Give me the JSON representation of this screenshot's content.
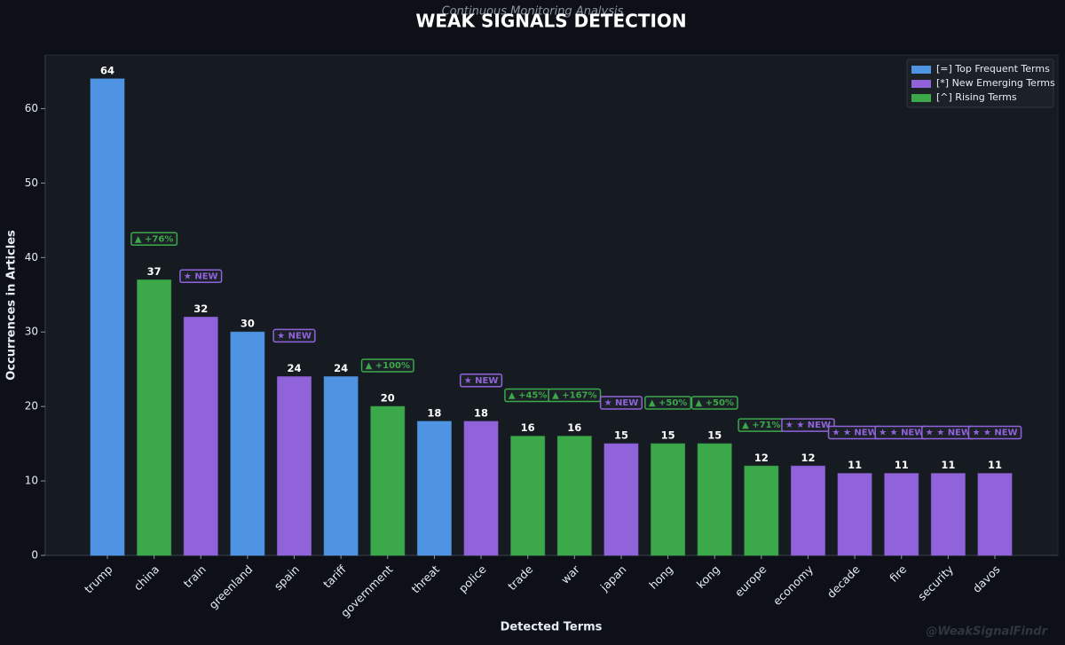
{
  "chart_data": {
    "type": "bar",
    "title": "WEAK SIGNALS DETECTION",
    "subtitle": "Continuous Monitoring Analysis",
    "x_label": "Detected Terms",
    "y_label": "Occurrences in Articles",
    "watermark": "@WeakSignalFindr",
    "categories": [
      "trump",
      "china",
      "train",
      "greenland",
      "spain",
      "tariff",
      "government",
      "threat",
      "police",
      "trade",
      "war",
      "japan",
      "hong",
      "kong",
      "europe",
      "economy",
      "decade",
      "fire",
      "security",
      "davos"
    ],
    "values": [
      64,
      37,
      32,
      30,
      24,
      24,
      20,
      18,
      18,
      16,
      16,
      15,
      15,
      15,
      12,
      12,
      11,
      11,
      11,
      11
    ],
    "bar_colors": [
      "#4f94e3",
      "#3ba84a",
      "#9063db",
      "#4f94e3",
      "#9063db",
      "#4f94e3",
      "#3ba84a",
      "#4f94e3",
      "#9063db",
      "#3ba84a",
      "#3ba84a",
      "#9063db",
      "#3ba84a",
      "#3ba84a",
      "#3ba84a",
      "#9063db",
      "#9063db",
      "#9063db",
      "#9063db",
      "#9063db"
    ],
    "badges": [
      null,
      "▲ +76%",
      "★ NEW",
      null,
      "★ NEW",
      null,
      "▲ +100%",
      null,
      "★ NEW",
      "▲ +45%",
      "▲ +167%",
      "★ NEW",
      "▲ +50%",
      "▲ +50%",
      "▲ +71%",
      "★ ★ NEW",
      "★ ★ NEW",
      "★ ★ NEW",
      "★ ★ NEW",
      "★ ★ NEW"
    ],
    "legend": [
      {
        "name": "[=] Top Frequent Terms",
        "color": "#4f94e3"
      },
      {
        "name": "[*] New Emerging Terms",
        "color": "#9063db"
      },
      {
        "name": "[^] Rising Terms",
        "color": "#3ba84a"
      }
    ],
    "legend_position": "upper right",
    "ylim": [
      0,
      67.2
    ],
    "yticks": [
      0,
      10,
      20,
      30,
      40,
      50,
      60
    ],
    "grid": false
  }
}
